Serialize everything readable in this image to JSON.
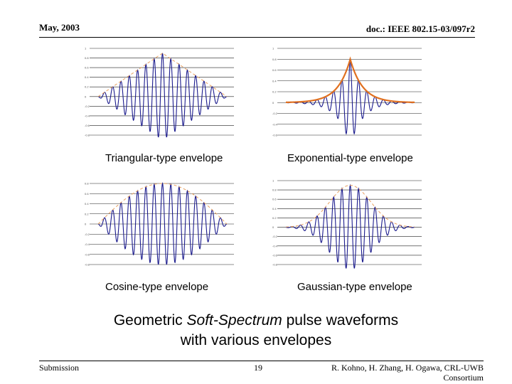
{
  "header": {
    "date": "May, 2003",
    "doc_id": "doc.: IEEE 802.15-03/097r2"
  },
  "captions": {
    "triangular": "Triangular-type envelope",
    "exponential": "Exponential-type envelope",
    "cosine": "Cosine-type envelope",
    "gaussian": "Gaussian-type envelope"
  },
  "title": {
    "line1_prefix": "Geometric ",
    "line1_italic": "Soft-Spectrum",
    "line1_suffix": " pulse waveforms",
    "line2": "with various envelopes"
  },
  "footer": {
    "left": "Submission",
    "page": "19",
    "right_line1": "R. Kohno, H. Zhang, H. Ogawa, CRL-UWB",
    "right_line2": "Consortium"
  },
  "colors": {
    "waveform": "#1a1a8c",
    "envelope_dashed": "#e8a060",
    "envelope_solid": "#e07020",
    "grid": "#222222"
  },
  "chart_data": [
    {
      "type": "line",
      "name": "triangular",
      "envelope": "triangular",
      "envelope_style": "dashed",
      "ylim": [
        -1,
        1
      ],
      "ytick_labels": [
        "1",
        "0.8",
        "0.6",
        "0.4",
        "0.2",
        "0",
        "-0.2",
        "-0.4",
        "-0.6",
        "-0.8"
      ]
    },
    {
      "type": "line",
      "name": "exponential",
      "envelope": "exponential",
      "envelope_style": "solid",
      "ylim": [
        -1,
        1
      ],
      "ytick_labels": [
        "1",
        "0.8",
        "0.6",
        "0.4",
        "0.2",
        "0",
        "-0.2",
        "-0.4",
        "-0.6"
      ]
    },
    {
      "type": "line",
      "name": "cosine",
      "envelope": "cosine",
      "envelope_style": "dashed",
      "ylim": [
        -1,
        1
      ],
      "ytick_labels": [
        "0.8",
        "0.6",
        "0.4",
        "0.2",
        "0",
        "-0.2",
        "-0.4",
        "-0.6",
        "-0.8"
      ]
    },
    {
      "type": "line",
      "name": "gaussian",
      "envelope": "gaussian",
      "envelope_style": "dashed",
      "ylim": [
        -1,
        1
      ],
      "ytick_labels": [
        "1",
        "0.8",
        "0.6",
        "0.4",
        "0.2",
        "0",
        "-0.2",
        "-0.4",
        "-0.6",
        "-0.8"
      ]
    }
  ]
}
